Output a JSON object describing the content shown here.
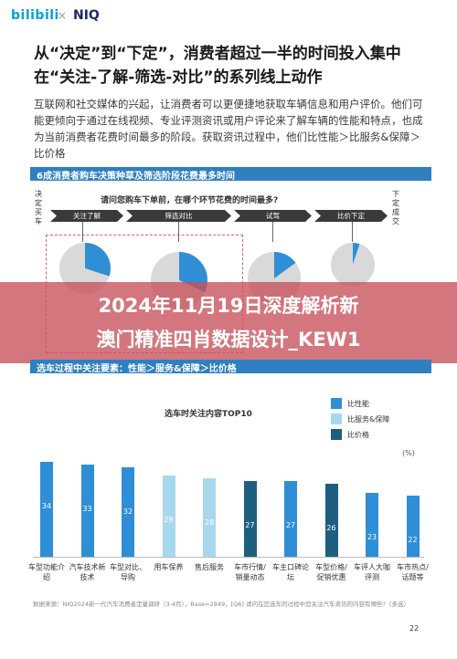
{
  "header": {
    "logo_bilibili": "bilibili",
    "logo_x": "×",
    "logo_niq": "NIQ"
  },
  "title": "从“决定”到“下定”，消费者超过一半的时间投入集中在“关注-了解-筛选-对比”的系列线上动作",
  "paragraph": "互联网和社交媒体的兴起，让消费者可以更便捷地获取车辆信息和用户评价。他们可能更倾向于通过在线视频、专业评测资讯或用户评论来了解车辆的性能和特点，也成为当前消费者花费时间最多的阶段。获取资讯过程中，他们比性能＞比服务&保障＞比价格",
  "section1": {
    "heading": "6成消费者购车决策种草及筛选阶段花费最多时间",
    "side_left": "决定买车",
    "side_right": "下定成交",
    "question": "请问您购车下单前，在哪个环节花费的时间最多?",
    "stages": [
      "关注了解",
      "筛选对比",
      "试驾",
      "比价下定"
    ],
    "pie_fractions": [
      0.3,
      0.32,
      0.15,
      0.05
    ]
  },
  "banner": {
    "line1": "2024年11月19日深度解析新",
    "line2": "澳门精准四肖数据设计_KEW1"
  },
  "section2": {
    "heading": "选车过程中关注要素：性能＞服务&保障＞比价格"
  },
  "colors": {
    "performance": "#2f8fd6",
    "service": "#a8d8ee",
    "price": "#1e5f80",
    "section": "#2f7fc1",
    "banner": "#c8505a"
  },
  "chart_data": {
    "type": "bar",
    "title": "选车时关注内容TOP10",
    "unit": "(%)",
    "legend": [
      "比性能",
      "比服务&保障",
      "比价格"
    ],
    "categories": [
      "车型功能介绍",
      "汽车技术新技术",
      "车型对比、导购",
      "用车保养",
      "售后服务",
      "车市行情/销量动态",
      "车主口碑论坛",
      "车型价格/促销优惠",
      "车评人大咖评测",
      "车市热点/话题等"
    ],
    "values": [
      34,
      33,
      32,
      29,
      28,
      27,
      27,
      26,
      23,
      22
    ],
    "groups": [
      0,
      0,
      0,
      1,
      1,
      2,
      0,
      2,
      0,
      0
    ],
    "ylim": [
      0,
      40
    ]
  },
  "footnote": "数据来源：NIQ2024新一代汽车消费者定量调研（3-4月），Base=2849，[Q6] 请问在您选车的过程中您关注汽车资讯的内容有哪些?（多选）",
  "page_number": "22"
}
